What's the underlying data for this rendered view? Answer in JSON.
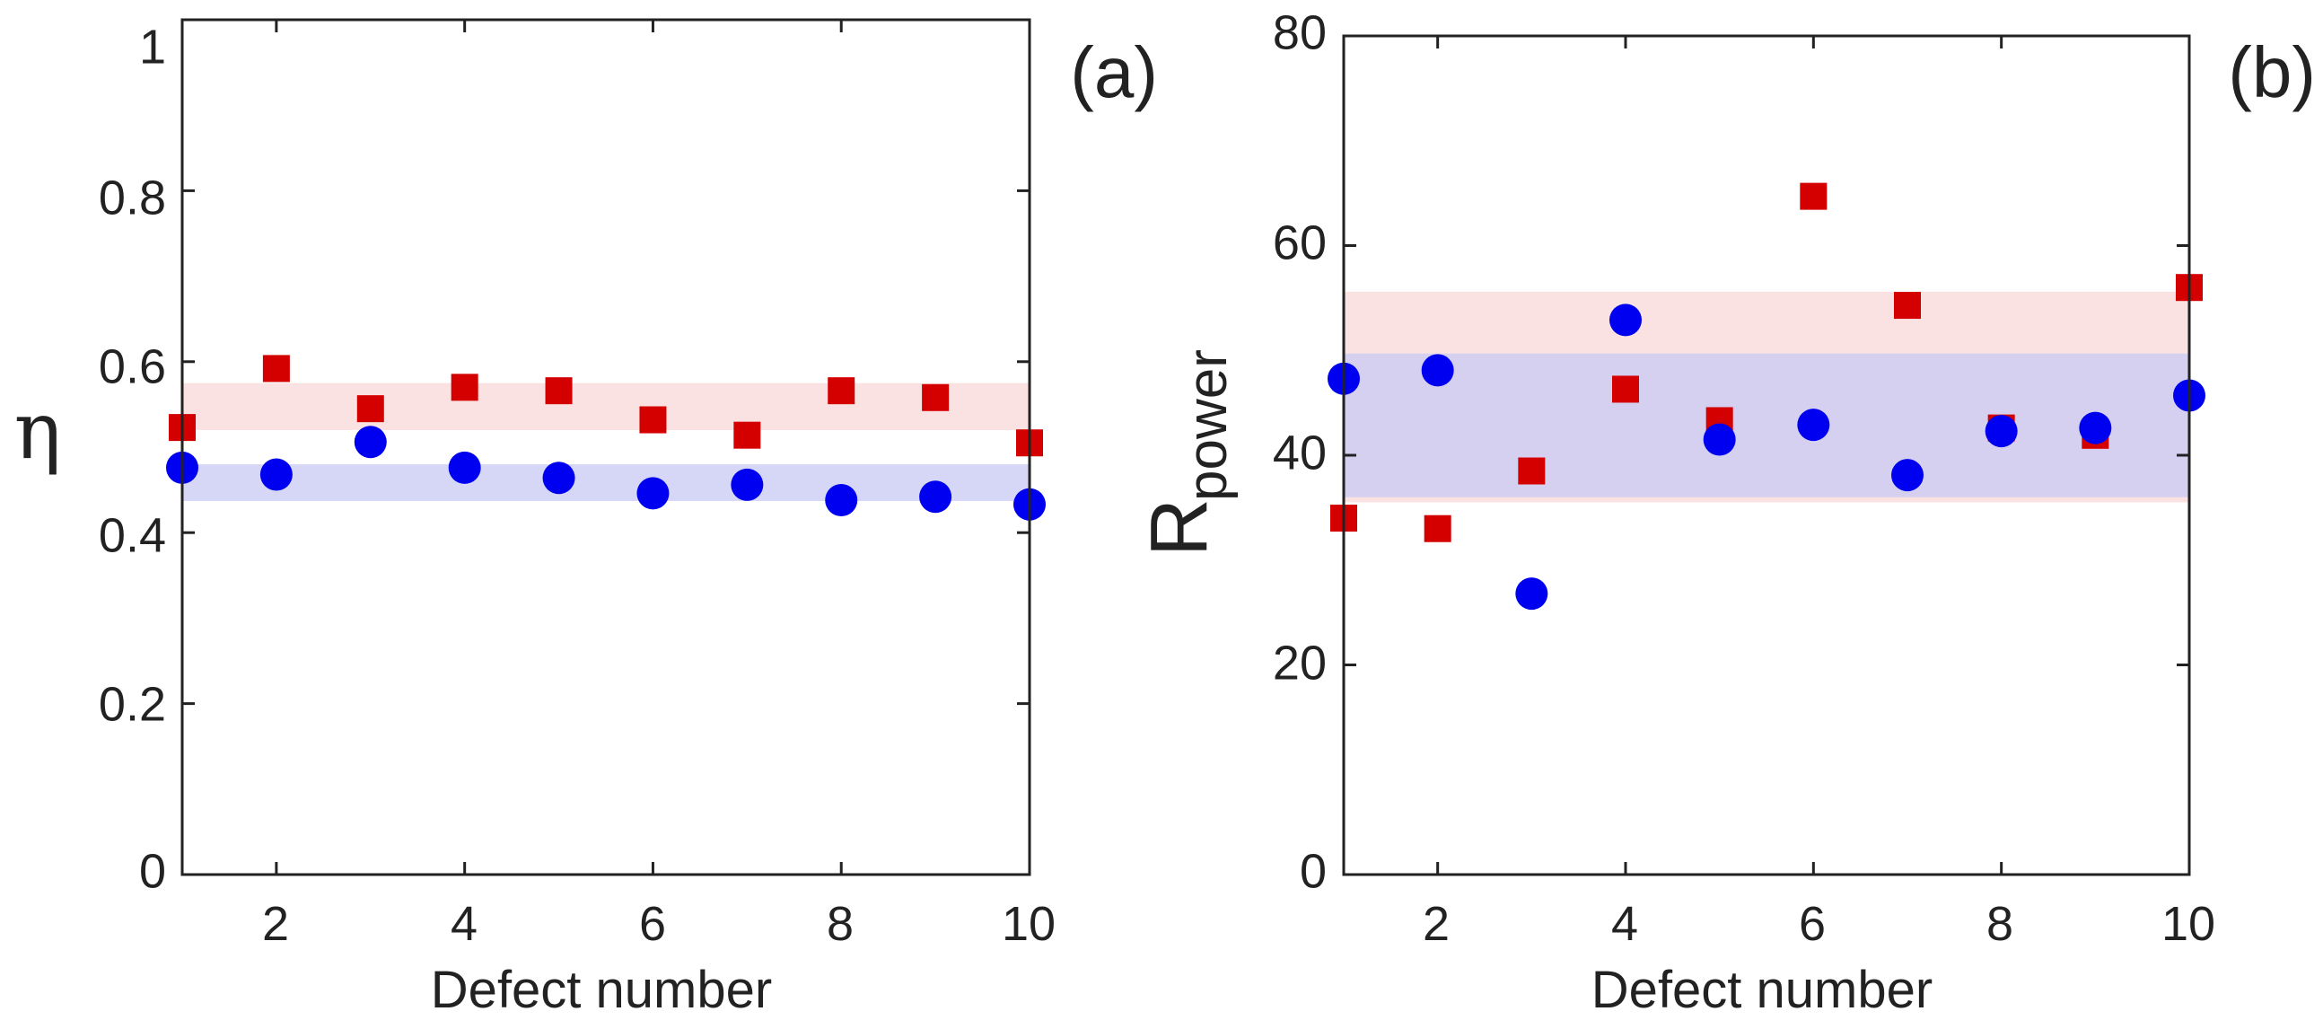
{
  "colors": {
    "red_marker": "#d40000",
    "blue_marker": "#0000f0",
    "red_band": "#f8d8d8",
    "blue_band": "#c8c8f4",
    "overlap_band": "#dcc8e6",
    "axis": "#222222"
  },
  "chart_data": [
    {
      "type": "scatter",
      "panel_label": "(a)",
      "xlabel": "Defect number",
      "ylabel": "η",
      "xlim": [
        1,
        10
      ],
      "ylim": [
        0,
        1
      ],
      "x_ticks": [
        2,
        4,
        6,
        8,
        10
      ],
      "x_tick_labels": [
        "2",
        "4",
        "6",
        "8",
        "10"
      ],
      "y_ticks": [
        0,
        0.2,
        0.4,
        0.6,
        0.8,
        1
      ],
      "y_tick_labels": [
        "0",
        "0.2",
        "0.4",
        "0.6",
        "0.8",
        "1"
      ],
      "bands": [
        {
          "series": "red",
          "range": [
            0.52,
            0.575
          ]
        },
        {
          "series": "blue",
          "range": [
            0.437,
            0.48
          ]
        }
      ],
      "series": [
        {
          "name": "red",
          "marker": "square",
          "x": [
            1,
            2,
            3,
            4,
            5,
            6,
            7,
            8,
            9,
            10
          ],
          "values": [
            0.523,
            0.592,
            0.545,
            0.57,
            0.566,
            0.532,
            0.514,
            0.566,
            0.558,
            0.505
          ]
        },
        {
          "name": "blue",
          "marker": "circle",
          "x": [
            1,
            2,
            3,
            4,
            5,
            6,
            7,
            8,
            9,
            10
          ],
          "values": [
            0.476,
            0.468,
            0.506,
            0.476,
            0.464,
            0.446,
            0.456,
            0.438,
            0.442,
            0.433
          ]
        }
      ]
    },
    {
      "type": "scatter",
      "panel_label": "(b)",
      "xlabel": "Defect number",
      "ylabel_main": "R",
      "ylabel_sub": "power",
      "xlim": [
        1,
        10
      ],
      "ylim": [
        0,
        80
      ],
      "x_ticks": [
        2,
        4,
        6,
        8,
        10
      ],
      "x_tick_labels": [
        "2",
        "4",
        "6",
        "8",
        "10"
      ],
      "y_ticks": [
        0,
        20,
        40,
        60,
        80
      ],
      "y_tick_labels": [
        "0",
        "20",
        "40",
        "60",
        "80"
      ],
      "bands": [
        {
          "series": "red",
          "range": [
            35.5,
            55.6
          ]
        },
        {
          "series": "blue",
          "range": [
            36,
            49.7
          ]
        }
      ],
      "series": [
        {
          "name": "red",
          "marker": "square",
          "x": [
            1,
            2,
            3,
            4,
            5,
            6,
            7,
            8,
            9,
            10
          ],
          "values": [
            34,
            33,
            38.5,
            46.3,
            43.3,
            64.7,
            54.3,
            42.6,
            41.9,
            56
          ]
        },
        {
          "name": "blue",
          "marker": "circle",
          "x": [
            1,
            2,
            3,
            4,
            5,
            6,
            7,
            8,
            9,
            10
          ],
          "values": [
            47.3,
            48.1,
            26.8,
            52.9,
            41.5,
            42.9,
            38.1,
            42.3,
            42.6,
            45.7
          ]
        }
      ]
    }
  ]
}
